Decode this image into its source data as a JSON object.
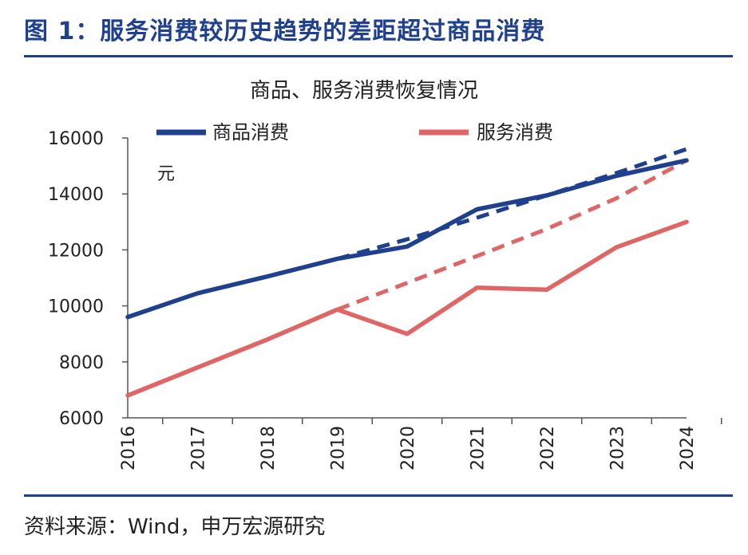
{
  "header": {
    "title": "图 1：服务消费较历史趋势的差距超过商品消费"
  },
  "footer": {
    "source": "资料来源：Wind，申万宏源研究"
  },
  "chart_data": {
    "type": "line",
    "title": "商品、服务消费恢复情况",
    "unit_label": "元",
    "categories": [
      "2016",
      "2017",
      "2018",
      "2019",
      "2020",
      "2021",
      "2022",
      "2023",
      "2024"
    ],
    "ylim": [
      6000,
      16000
    ],
    "yticks": [
      6000,
      8000,
      10000,
      12000,
      14000,
      16000
    ],
    "ytick_labels": [
      "6000",
      "8000",
      "10000",
      "12000",
      "14000",
      "16000"
    ],
    "legend_position": "top",
    "grid": false,
    "series": [
      {
        "name": "商品消费",
        "color": "#1f3f8f",
        "style": "solid",
        "values": [
          9600,
          10450,
          11050,
          11680,
          12120,
          13450,
          13950,
          14650,
          15200
        ]
      },
      {
        "name": "服务消费",
        "color": "#e06666",
        "style": "solid",
        "values": [
          6800,
          7800,
          8800,
          9870,
          9000,
          10650,
          10580,
          12100,
          13000
        ]
      }
    ],
    "trends": [
      {
        "color": "#1f3f8f",
        "style": "dashed",
        "start_category": "2019",
        "values": [
          11680,
          12380,
          13150,
          13950,
          14750,
          15600
        ]
      },
      {
        "color": "#e06666",
        "style": "dashed",
        "start_category": "2019",
        "values": [
          9870,
          10820,
          11780,
          12750,
          13850,
          15200
        ]
      }
    ]
  }
}
